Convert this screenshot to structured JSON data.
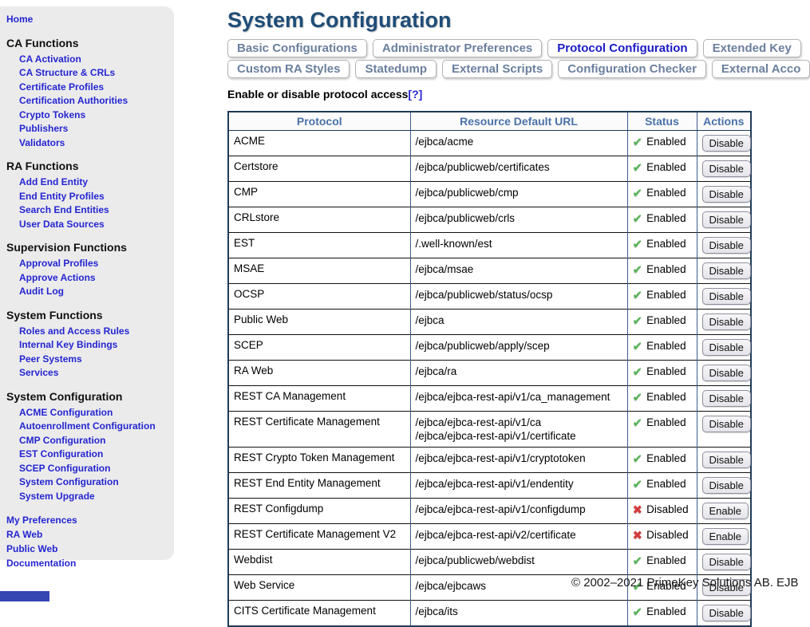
{
  "colors": {
    "title": "#1f4d78",
    "link_blue": "#2525d2",
    "tab_inactive": "#6b7f9e",
    "tab_active": "#1b1bc4",
    "table_border": "#1f3b57",
    "header_text": "#4a72a8",
    "status_ok": "#53b153",
    "status_bad": "#d43a3a",
    "sidebar_bg": "#ebebeb",
    "footer_band": "#3545b2"
  },
  "sidebar": {
    "home_label": "Home",
    "sections": [
      {
        "title": "CA Functions",
        "items": [
          "CA Activation",
          "CA Structure & CRLs",
          "Certificate Profiles",
          "Certification Authorities",
          "Crypto Tokens",
          "Publishers",
          "Validators"
        ]
      },
      {
        "title": "RA Functions",
        "items": [
          "Add End Entity",
          "End Entity Profiles",
          "Search End Entities",
          "User Data Sources"
        ]
      },
      {
        "title": "Supervision Functions",
        "items": [
          "Approval Profiles",
          "Approve Actions",
          "Audit Log"
        ]
      },
      {
        "title": "System Functions",
        "items": [
          "Roles and Access Rules",
          "Internal Key Bindings",
          "Peer Systems",
          "Services"
        ]
      },
      {
        "title": "System Configuration",
        "items": [
          "ACME Configuration",
          "Autoenrollment Configuration",
          "CMP Configuration",
          "EST Configuration",
          "SCEP Configuration",
          "System Configuration",
          "System Upgrade"
        ]
      }
    ],
    "footer_links": [
      "My Preferences",
      "RA Web",
      "Public Web",
      "Documentation"
    ]
  },
  "main": {
    "title": "System Configuration",
    "tabs_row1": [
      {
        "label": "Basic Configurations",
        "active": false
      },
      {
        "label": "Administrator Preferences",
        "active": false
      },
      {
        "label": "Protocol Configuration",
        "active": true
      },
      {
        "label": "Extended Key",
        "active": false
      }
    ],
    "tabs_row2": [
      {
        "label": "Custom RA Styles",
        "active": false
      },
      {
        "label": "Statedump",
        "active": false
      },
      {
        "label": "External Scripts",
        "active": false
      },
      {
        "label": "Configuration Checker",
        "active": false
      },
      {
        "label": "External Acco",
        "active": false
      }
    ],
    "section_heading": "Enable or disable protocol access",
    "help_link": "[?]",
    "table": {
      "headers": [
        "Protocol",
        "Resource Default URL",
        "Status",
        "Actions"
      ],
      "rows": [
        {
          "protocol": "ACME",
          "urls": [
            "/ejbca/acme"
          ],
          "status": "Enabled",
          "action": "Disable"
        },
        {
          "protocol": "Certstore",
          "urls": [
            "/ejbca/publicweb/certificates"
          ],
          "status": "Enabled",
          "action": "Disable"
        },
        {
          "protocol": "CMP",
          "urls": [
            "/ejbca/publicweb/cmp"
          ],
          "status": "Enabled",
          "action": "Disable"
        },
        {
          "protocol": "CRLstore",
          "urls": [
            "/ejbca/publicweb/crls"
          ],
          "status": "Enabled",
          "action": "Disable"
        },
        {
          "protocol": "EST",
          "urls": [
            "/.well-known/est"
          ],
          "status": "Enabled",
          "action": "Disable"
        },
        {
          "protocol": "MSAE",
          "urls": [
            "/ejbca/msae"
          ],
          "status": "Enabled",
          "action": "Disable"
        },
        {
          "protocol": "OCSP",
          "urls": [
            "/ejbca/publicweb/status/ocsp"
          ],
          "status": "Enabled",
          "action": "Disable"
        },
        {
          "protocol": "Public Web",
          "urls": [
            "/ejbca"
          ],
          "status": "Enabled",
          "action": "Disable"
        },
        {
          "protocol": "SCEP",
          "urls": [
            "/ejbca/publicweb/apply/scep"
          ],
          "status": "Enabled",
          "action": "Disable"
        },
        {
          "protocol": "RA Web",
          "urls": [
            "/ejbca/ra"
          ],
          "status": "Enabled",
          "action": "Disable"
        },
        {
          "protocol": "REST CA Management",
          "urls": [
            "/ejbca/ejbca-rest-api/v1/ca_management"
          ],
          "status": "Enabled",
          "action": "Disable"
        },
        {
          "protocol": "REST Certificate Management",
          "urls": [
            "/ejbca/ejbca-rest-api/v1/ca",
            "/ejbca/ejbca-rest-api/v1/certificate"
          ],
          "status": "Enabled",
          "action": "Disable"
        },
        {
          "protocol": "REST Crypto Token Management",
          "urls": [
            "/ejbca/ejbca-rest-api/v1/cryptotoken"
          ],
          "status": "Enabled",
          "action": "Disable"
        },
        {
          "protocol": "REST End Entity Management",
          "urls": [
            "/ejbca/ejbca-rest-api/v1/endentity"
          ],
          "status": "Enabled",
          "action": "Disable"
        },
        {
          "protocol": "REST Configdump",
          "urls": [
            "/ejbca/ejbca-rest-api/v1/configdump"
          ],
          "status": "Disabled",
          "action": "Enable"
        },
        {
          "protocol": "REST Certificate Management V2",
          "urls": [
            "/ejbca/ejbca-rest-api/v2/certificate"
          ],
          "status": "Disabled",
          "action": "Enable"
        },
        {
          "protocol": "Webdist",
          "urls": [
            "/ejbca/publicweb/webdist"
          ],
          "status": "Enabled",
          "action": "Disable"
        },
        {
          "protocol": "Web Service",
          "urls": [
            "/ejbca/ejbcaws"
          ],
          "status": "Enabled",
          "action": "Disable"
        },
        {
          "protocol": "CITS Certificate Management",
          "urls": [
            "/ejbca/its"
          ],
          "status": "Enabled",
          "action": "Disable"
        }
      ]
    },
    "footer": "© 2002–2021 PrimeKey Solutions AB. EJB",
    "status_icons": {
      "enabled": "✔",
      "disabled": "✖"
    }
  }
}
